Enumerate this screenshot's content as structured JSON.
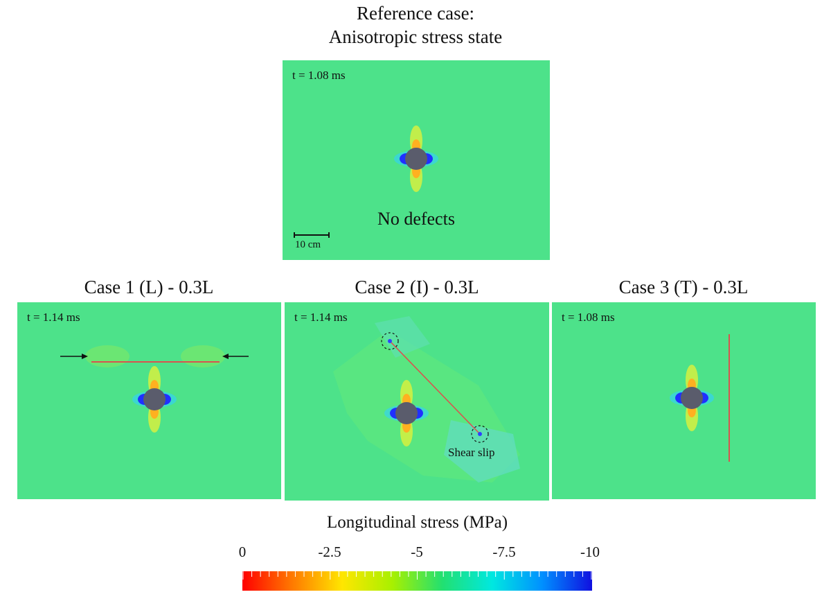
{
  "reference": {
    "title_line1": "Reference case:",
    "title_line2": "Anisotropic stress state",
    "time": "t = 1.08 ms",
    "annotation": "No defects",
    "scale_bar": "10 cm"
  },
  "cases": [
    {
      "title": "Case 1 (L) - 0.3L",
      "time": "t = 1.14 ms"
    },
    {
      "title": "Case 2 (I) - 0.3L",
      "time": "t = 1.14 ms",
      "annotation": "Shear slip"
    },
    {
      "title": "Case 3 (T) - 0.3L",
      "time": "t = 1.08 ms"
    }
  ],
  "colorbar": {
    "title": "Longitudinal stress (MPa)",
    "ticks": [
      "0",
      "-2.5",
      "-5",
      "-7.5",
      "-10"
    ],
    "colors": [
      "#ff0000",
      "#ff7a00",
      "#ffe600",
      "#a8f000",
      "#22e070",
      "#00e8e0",
      "#0090ff",
      "#1010e0"
    ]
  },
  "colors": {
    "field": "#4de28a",
    "hole": "#5a5c6c",
    "defect_line": "#d9534f"
  }
}
